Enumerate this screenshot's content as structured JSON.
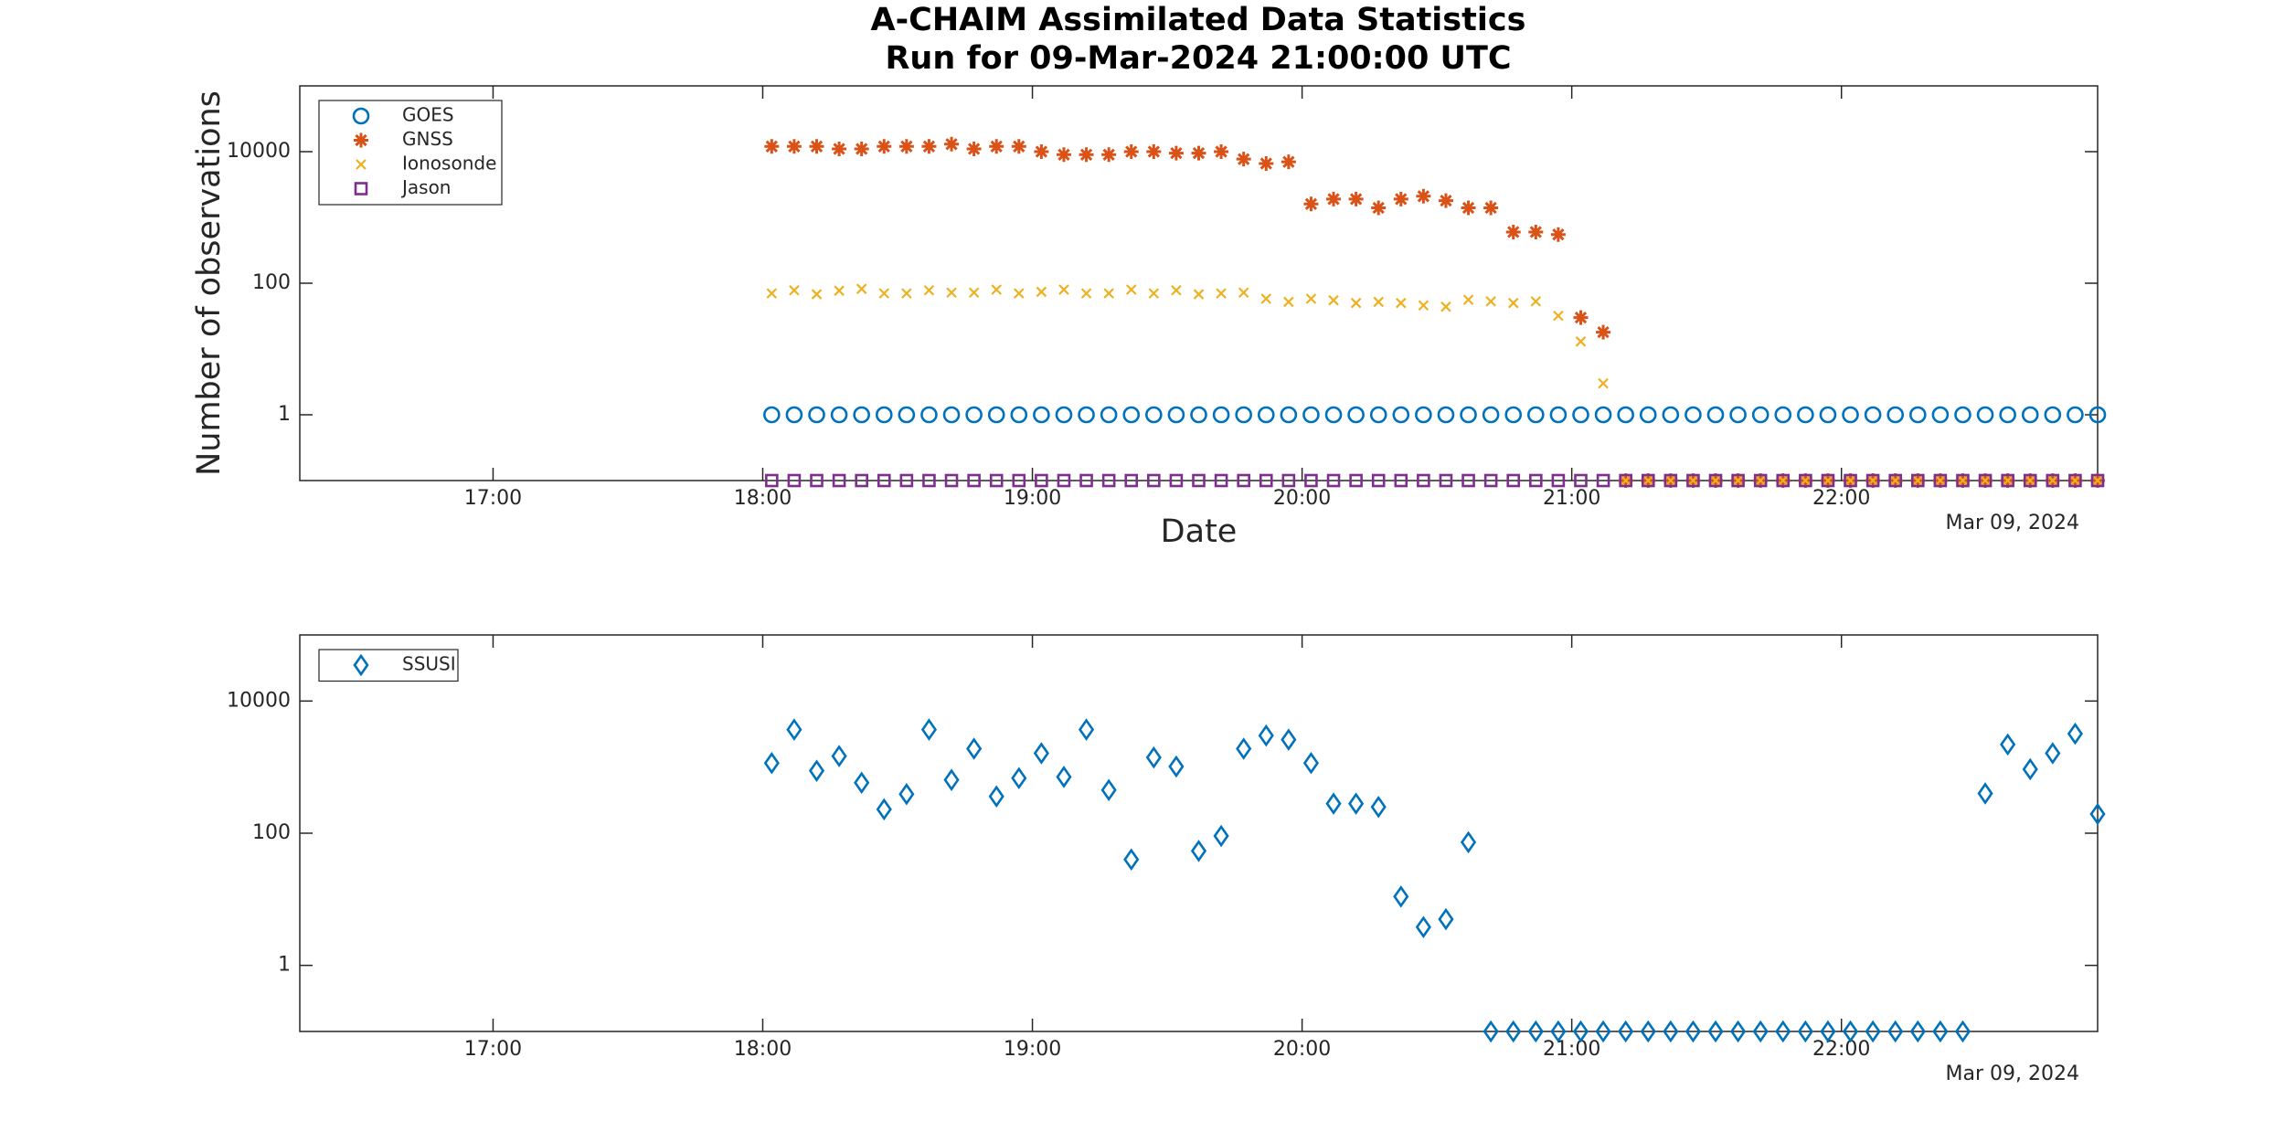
{
  "chart_data": [
    {
      "type": "scatter",
      "title": "A-CHAIM Assimilated Data Statistics",
      "subtitle": "Run for 09-Mar-2024 21:00:00 UTC",
      "xlabel": "Date",
      "ylabel": "Number of observations",
      "date_label": "Mar 09, 2024",
      "yscale": "log",
      "legend": "upper left",
      "xlim": [
        "16:17",
        "22:57"
      ],
      "xticks": [
        "17:00",
        "18:00",
        "19:00",
        "20:00",
        "21:00",
        "22:00"
      ],
      "ylim": [
        0.1,
        100000
      ],
      "yticks": [
        1,
        100,
        10000
      ],
      "x": [
        "18:02",
        "18:07",
        "18:12",
        "18:17",
        "18:22",
        "18:27",
        "18:32",
        "18:37",
        "18:42",
        "18:47",
        "18:52",
        "18:57",
        "19:02",
        "19:07",
        "19:12",
        "19:17",
        "19:22",
        "19:27",
        "19:32",
        "19:37",
        "19:42",
        "19:47",
        "19:52",
        "19:57",
        "20:02",
        "20:07",
        "20:12",
        "20:17",
        "20:22",
        "20:27",
        "20:32",
        "20:37",
        "20:42",
        "20:47",
        "20:52",
        "20:57",
        "21:02",
        "21:07",
        "21:12",
        "21:17",
        "21:22",
        "21:27",
        "21:32",
        "21:37",
        "21:42",
        "21:47",
        "21:52",
        "21:57",
        "22:02",
        "22:07",
        "22:12",
        "22:17",
        "22:22",
        "22:27",
        "22:32",
        "22:37",
        "22:42",
        "22:47",
        "22:52",
        "22:57"
      ],
      "series": [
        {
          "name": "GOES",
          "color": "#0072BD",
          "marker": "o",
          "values": [
            1,
            1,
            1,
            1,
            1,
            1,
            1,
            1,
            1,
            1,
            1,
            1,
            1,
            1,
            1,
            1,
            1,
            1,
            1,
            1,
            1,
            1,
            1,
            1,
            1,
            1,
            1,
            1,
            1,
            1,
            1,
            1,
            1,
            1,
            1,
            1,
            1,
            1,
            1,
            1,
            1,
            1,
            1,
            1,
            1,
            1,
            1,
            1,
            1,
            1,
            1,
            1,
            1,
            1,
            1,
            1,
            1,
            1,
            1,
            1
          ]
        },
        {
          "name": "GNSS",
          "color": "#D95319",
          "marker": "*",
          "values": [
            12000,
            12000,
            12000,
            11000,
            11000,
            12000,
            12000,
            12000,
            13000,
            11000,
            12000,
            12000,
            10000,
            9000,
            9000,
            9000,
            10000,
            10000,
            9500,
            9500,
            10000,
            7700,
            6600,
            7000,
            1600,
            1900,
            1900,
            1400,
            1900,
            2100,
            1800,
            1400,
            1400,
            600,
            600,
            550,
            30,
            18,
            0.1,
            0.1,
            0.1,
            0.1,
            0.1,
            0.1,
            0.1,
            0.1,
            0.1,
            0.1,
            0.1,
            0.1,
            0.1,
            0.1,
            0.1,
            0.1,
            0.1,
            0.1,
            0.1,
            0.1,
            0.1,
            0.1
          ]
        },
        {
          "name": "Ionosonde",
          "color": "#EDB120",
          "marker": "x",
          "values": [
            70,
            78,
            68,
            77,
            82,
            70,
            70,
            78,
            72,
            72,
            80,
            70,
            74,
            80,
            70,
            70,
            80,
            70,
            78,
            68,
            70,
            72,
            58,
            52,
            58,
            55,
            50,
            52,
            50,
            46,
            44,
            56,
            53,
            50,
            53,
            32,
            13,
            3,
            0.1,
            0.1,
            0.1,
            0.1,
            0.1,
            0.1,
            0.1,
            0.1,
            0.1,
            0.1,
            0.1,
            0.1,
            0.1,
            0.1,
            0.1,
            0.1,
            0.1,
            0.1,
            0.1,
            0.1,
            0.1,
            0.1
          ]
        },
        {
          "name": "Jason",
          "color": "#7E2F8E",
          "marker": "s",
          "values": [
            0.1,
            0.1,
            0.1,
            0.1,
            0.1,
            0.1,
            0.1,
            0.1,
            0.1,
            0.1,
            0.1,
            0.1,
            0.1,
            0.1,
            0.1,
            0.1,
            0.1,
            0.1,
            0.1,
            0.1,
            0.1,
            0.1,
            0.1,
            0.1,
            0.1,
            0.1,
            0.1,
            0.1,
            0.1,
            0.1,
            0.1,
            0.1,
            0.1,
            0.1,
            0.1,
            0.1,
            0.1,
            0.1,
            0.1,
            0.1,
            0.1,
            0.1,
            0.1,
            0.1,
            0.1,
            0.1,
            0.1,
            0.1,
            0.1,
            0.1,
            0.1,
            0.1,
            0.1,
            0.1,
            0.1,
            0.1,
            0.1,
            0.1,
            0.1,
            0.1
          ]
        }
      ]
    },
    {
      "type": "scatter",
      "date_label": "Mar 09, 2024",
      "yscale": "log",
      "legend": "upper left",
      "xlim": [
        "16:17",
        "22:57"
      ],
      "xticks": [
        "17:00",
        "18:00",
        "19:00",
        "20:00",
        "21:00",
        "22:00"
      ],
      "ylim": [
        0.1,
        100000
      ],
      "yticks": [
        1,
        100,
        10000
      ],
      "x": [
        "18:02",
        "18:07",
        "18:12",
        "18:17",
        "18:22",
        "18:27",
        "18:32",
        "18:37",
        "18:42",
        "18:47",
        "18:52",
        "18:57",
        "19:02",
        "19:07",
        "19:12",
        "19:17",
        "19:22",
        "19:27",
        "19:32",
        "19:37",
        "19:42",
        "19:47",
        "19:52",
        "19:57",
        "20:02",
        "20:07",
        "20:12",
        "20:17",
        "20:22",
        "20:27",
        "20:32",
        "20:37",
        "20:42",
        "20:47",
        "20:52",
        "20:57",
        "21:02",
        "21:07",
        "21:12",
        "21:17",
        "21:22",
        "21:27",
        "21:32",
        "21:37",
        "21:42",
        "21:47",
        "21:52",
        "21:57",
        "22:02",
        "22:07",
        "22:12",
        "22:17",
        "22:22",
        "22:27",
        "22:32",
        "22:37",
        "22:42",
        "22:47",
        "22:52",
        "22:57"
      ],
      "series": [
        {
          "name": "SSUSI",
          "color": "#0072BD",
          "marker": "d",
          "values": [
            1150,
            3700,
            880,
            1470,
            580,
            230,
            390,
            3700,
            640,
            1900,
            360,
            680,
            1620,
            710,
            3700,
            450,
            40,
            1400,
            1020,
            54,
            91,
            1900,
            3000,
            2600,
            1150,
            280,
            280,
            250,
            11,
            3.8,
            5,
            73,
            0.1,
            0.1,
            0.1,
            0.1,
            0.1,
            0.1,
            0.1,
            0.1,
            0.1,
            0.1,
            0.1,
            0.1,
            0.1,
            0.1,
            0.1,
            0.1,
            0.1,
            0.1,
            0.1,
            0.1,
            0.1,
            0.1,
            400,
            2200,
            930,
            1620,
            3200,
            195
          ]
        }
      ]
    }
  ]
}
